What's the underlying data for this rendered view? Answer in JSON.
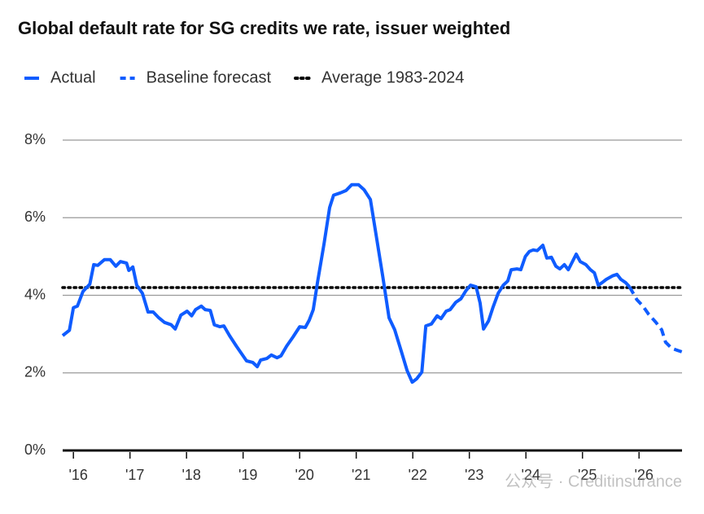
{
  "chart_data": {
    "type": "line",
    "title": "Global default rate for SG credits we rate, issuer weighted",
    "series": [
      {
        "name": "Actual",
        "color": "#0f5cff",
        "style": "solid",
        "x": [
          2015.81,
          2015.93,
          2016.0,
          2016.07,
          2016.17,
          2016.29,
          2016.36,
          2016.43,
          2016.55,
          2016.65,
          2016.75,
          2016.83,
          2016.94,
          2016.98,
          2017.05,
          2017.12,
          2017.22,
          2017.32,
          2017.41,
          2017.51,
          2017.61,
          2017.73,
          2017.8,
          2017.9,
          2018.01,
          2018.09,
          2018.16,
          2018.26,
          2018.33,
          2018.42,
          2018.49,
          2018.59,
          2018.66,
          2018.76,
          2018.88,
          2018.98,
          2019.06,
          2019.17,
          2019.25,
          2019.31,
          2019.42,
          2019.5,
          2019.6,
          2019.67,
          2019.77,
          2019.88,
          2020.0,
          2020.1,
          2020.17,
          2020.24,
          2020.32,
          2020.43,
          2020.53,
          2020.6,
          2020.72,
          2020.82,
          2020.92,
          2021.04,
          2021.14,
          2021.25,
          2021.35,
          2021.47,
          2021.58,
          2021.68,
          2021.8,
          2021.9,
          2021.99,
          2022.07,
          2022.16,
          2022.23,
          2022.33,
          2022.43,
          2022.5,
          2022.59,
          2022.66,
          2022.76,
          2022.85,
          2022.94,
          2023.02,
          2023.12,
          2023.19,
          2023.25,
          2023.34,
          2023.42,
          2023.51,
          2023.6,
          2023.68,
          2023.74,
          2023.84,
          2023.91,
          2023.99,
          2024.06,
          2024.13,
          2024.2,
          2024.3,
          2024.37,
          2024.45,
          2024.53,
          2024.6,
          2024.68,
          2024.75,
          2024.89,
          2024.96,
          2025.06,
          2025.14,
          2025.21,
          2025.28,
          2025.35,
          2025.42,
          2025.53,
          2025.61,
          2025.68,
          2025.76,
          2025.83
        ],
        "values": [
          2.96,
          3.1,
          3.68,
          3.72,
          4.1,
          4.29,
          4.79,
          4.77,
          4.92,
          4.92,
          4.75,
          4.87,
          4.83,
          4.64,
          4.73,
          4.26,
          4.05,
          3.57,
          3.57,
          3.42,
          3.3,
          3.24,
          3.13,
          3.49,
          3.59,
          3.47,
          3.63,
          3.72,
          3.63,
          3.61,
          3.24,
          3.19,
          3.21,
          2.96,
          2.69,
          2.48,
          2.31,
          2.27,
          2.16,
          2.33,
          2.37,
          2.46,
          2.39,
          2.44,
          2.69,
          2.92,
          3.19,
          3.17,
          3.36,
          3.63,
          4.37,
          5.32,
          6.26,
          6.58,
          6.64,
          6.7,
          6.85,
          6.85,
          6.72,
          6.47,
          5.57,
          4.47,
          3.42,
          3.11,
          2.54,
          2.06,
          1.76,
          1.85,
          2.02,
          3.21,
          3.26,
          3.47,
          3.4,
          3.59,
          3.63,
          3.82,
          3.91,
          4.12,
          4.26,
          4.22,
          3.8,
          3.13,
          3.34,
          3.7,
          4.05,
          4.26,
          4.37,
          4.66,
          4.68,
          4.66,
          5.0,
          5.13,
          5.17,
          5.15,
          5.29,
          4.96,
          4.98,
          4.75,
          4.68,
          4.79,
          4.66,
          5.06,
          4.87,
          4.79,
          4.66,
          4.58,
          4.26,
          4.33,
          4.41,
          4.5,
          4.54,
          4.41,
          4.33,
          4.22
        ]
      },
      {
        "name": "Baseline forecast",
        "color": "#0f5cff",
        "style": "dashed",
        "x": [
          2025.83,
          2025.96,
          2026.07,
          2026.17,
          2026.3,
          2026.4,
          2026.47,
          2026.58,
          2026.68,
          2026.76
        ],
        "values": [
          4.22,
          3.89,
          3.72,
          3.51,
          3.3,
          3.11,
          2.79,
          2.63,
          2.58,
          2.54
        ]
      }
    ],
    "reference_line": {
      "name": "Average 1983-2024",
      "value": 4.2,
      "color": "#000000",
      "style": "dotted"
    },
    "xlim": [
      2015.81,
      2026.76
    ],
    "xticks": [
      {
        "value": 2016,
        "label": "'16"
      },
      {
        "value": 2017,
        "label": "'17"
      },
      {
        "value": 2018,
        "label": "'18"
      },
      {
        "value": 2019,
        "label": "'19"
      },
      {
        "value": 2020,
        "label": "'20"
      },
      {
        "value": 2021,
        "label": "'21"
      },
      {
        "value": 2022,
        "label": "'22"
      },
      {
        "value": 2023,
        "label": "'23"
      },
      {
        "value": 2024,
        "label": "'24"
      },
      {
        "value": 2025,
        "label": "'25"
      },
      {
        "value": 2026,
        "label": "'26"
      }
    ],
    "ylim": [
      0,
      8
    ],
    "yticks": [
      {
        "value": 0,
        "label": "0%"
      },
      {
        "value": 2,
        "label": "2%"
      },
      {
        "value": 4,
        "label": "4%"
      },
      {
        "value": 6,
        "label": "6%"
      },
      {
        "value": 8,
        "label": "8%"
      }
    ],
    "grid": true,
    "watermark": "公众号 · Creditinsurance"
  }
}
